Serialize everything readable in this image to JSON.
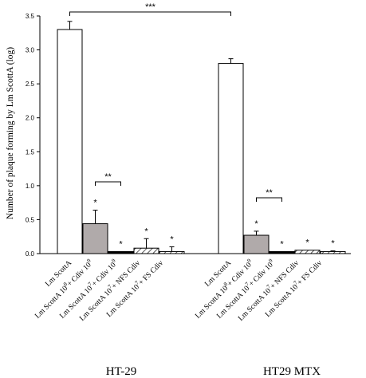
{
  "chart_data": {
    "type": "bar",
    "ylabel": "Number of plaque forming by Lm ScottA (log)",
    "ylim": [
      0,
      3.5
    ],
    "yticks": [
      "0.0",
      "0.5",
      "1.0",
      "1.5",
      "2.0",
      "2.5",
      "3.0",
      "3.5"
    ],
    "grid": false,
    "groups": [
      {
        "name": "HT-29",
        "bars": [
          {
            "label": [
              "Lm ScottA"
            ],
            "value": 3.3,
            "error": 0.12,
            "fill": "white",
            "sig": ""
          },
          {
            "label": [
              "Lm ScottA 10",
              "8",
              "+ Cdiv 10",
              "9"
            ],
            "value": 0.44,
            "error": 0.2,
            "fill": "gray",
            "sig": "*"
          },
          {
            "label": [
              "Lm ScottA 10",
              "7",
              "+ Cdiv 10",
              "9"
            ],
            "value": 0.03,
            "error": 0.0,
            "fill": "black",
            "sig": "*"
          },
          {
            "label": [
              "Lm ScottA 10",
              "7",
              "+ NFS Cdiv",
              ""
            ],
            "value": 0.08,
            "error": 0.14,
            "fill": "hatch",
            "sig": "*"
          },
          {
            "label": [
              "Lm ScottA 10",
              "7",
              "+ FS Cdiv",
              ""
            ],
            "value": 0.03,
            "error": 0.07,
            "fill": "hatch",
            "sig": "*"
          }
        ]
      },
      {
        "name": "HT29 MTX",
        "bars": [
          {
            "label": [
              "Lm ScottA"
            ],
            "value": 2.8,
            "error": 0.07,
            "fill": "white",
            "sig": ""
          },
          {
            "label": [
              "Lm ScottA 10",
              "8",
              "+ Cdiv 10",
              "9"
            ],
            "value": 0.27,
            "error": 0.06,
            "fill": "gray",
            "sig": "*"
          },
          {
            "label": [
              "Lm ScottA 10",
              "7",
              "+ Cdiv 10",
              "9"
            ],
            "value": 0.03,
            "error": 0.0,
            "fill": "black",
            "sig": "*"
          },
          {
            "label": [
              "Lm ScottA 10",
              "7",
              "+ NFS Cdiv",
              ""
            ],
            "value": 0.05,
            "error": 0.0,
            "fill": "hatch",
            "sig": "*"
          },
          {
            "label": [
              "Lm ScottA 10",
              "7",
              "+ FS Cdiv",
              ""
            ],
            "value": 0.03,
            "error": 0.01,
            "fill": "hatch",
            "sig": "*"
          }
        ]
      }
    ],
    "brackets": [
      {
        "group_from": 0,
        "bar_from": 0,
        "group_to": 1,
        "bar_to": 0,
        "text": "***"
      },
      {
        "group_from": 0,
        "bar_from": 1,
        "group_to": 0,
        "bar_to": 2,
        "text": "**"
      },
      {
        "group_from": 1,
        "bar_from": 1,
        "group_to": 1,
        "bar_to": 2,
        "text": "**"
      }
    ],
    "colors": {
      "white": "#ffffff",
      "gray": "#b0aaaa",
      "black": "#000000",
      "hatch": "#ffffff",
      "axis": "#000000"
    }
  }
}
